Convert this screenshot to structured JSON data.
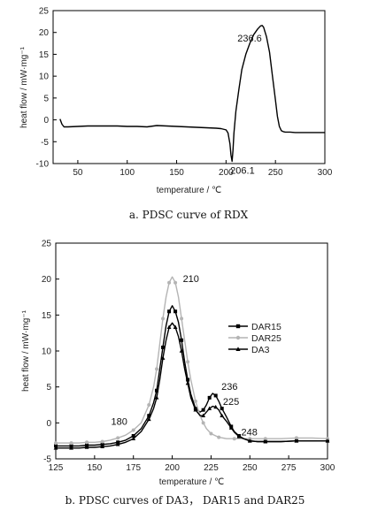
{
  "chart_data": [
    {
      "type": "line",
      "id": "a",
      "xlabel": "temperature / ℃",
      "ylabel": "heat flow / mW·mg⁻¹",
      "xlim": [
        25,
        300
      ],
      "ylim": [
        -10,
        25
      ],
      "xticks": [
        50,
        100,
        150,
        200,
        250,
        300
      ],
      "yticks": [
        -10,
        -5,
        0,
        5,
        10,
        15,
        20,
        25
      ],
      "series": [
        {
          "color": "#000000",
          "x": [
            32,
            34,
            36,
            40,
            50,
            60,
            70,
            80,
            90,
            100,
            110,
            120,
            130,
            140,
            150,
            160,
            170,
            180,
            190,
            195,
            200,
            202,
            204,
            205,
            206.1,
            207,
            208,
            210,
            213,
            216,
            220,
            224,
            228,
            232,
            235,
            236.6,
            238,
            241,
            244,
            247,
            250,
            252,
            254,
            256,
            258,
            260,
            265,
            270,
            280,
            290,
            300
          ],
          "y": [
            0.2,
            -1.0,
            -1.6,
            -1.6,
            -1.5,
            -1.4,
            -1.4,
            -1.4,
            -1.4,
            -1.5,
            -1.5,
            -1.6,
            -1.3,
            -1.4,
            -1.5,
            -1.6,
            -1.7,
            -1.8,
            -1.9,
            -2.0,
            -2.3,
            -3.0,
            -5.5,
            -8.0,
            -9.5,
            -7.0,
            -3.0,
            2.0,
            7.0,
            11.5,
            15.0,
            17.5,
            19.5,
            20.8,
            21.5,
            21.6,
            21.2,
            19.0,
            15.5,
            10.0,
            4.5,
            0.8,
            -1.5,
            -2.5,
            -2.7,
            -2.8,
            -2.8,
            -2.9,
            -2.9,
            -2.9,
            -2.9
          ]
        }
      ],
      "annotations": [
        {
          "text": "236.6",
          "x": 236.6,
          "y": 21.6
        },
        {
          "text": "206.1",
          "x": 206.1,
          "y": -9.5
        }
      ],
      "caption": "a.  PDSC curve of RDX",
      "grid": false,
      "legend": null
    },
    {
      "type": "line",
      "id": "b",
      "xlabel": "temperature / ℃",
      "ylabel": "heat flow / mW·mg⁻¹",
      "xlim": [
        125,
        300
      ],
      "ylim": [
        -5,
        25
      ],
      "xticks": [
        125,
        150,
        175,
        200,
        225,
        250,
        275,
        300
      ],
      "yticks": [
        -5,
        0,
        5,
        10,
        15,
        20,
        25
      ],
      "legend_position": "right",
      "series": [
        {
          "name": "DAR15",
          "color": "#000000",
          "marker": "square",
          "x": [
            125,
            130,
            135,
            140,
            145,
            150,
            155,
            160,
            165,
            170,
            175,
            180,
            185,
            188,
            190,
            192,
            194,
            196,
            198,
            200,
            202,
            204,
            206,
            208,
            210,
            212,
            215,
            218,
            220,
            222,
            224,
            226,
            228,
            230,
            232,
            235,
            238,
            240,
            243,
            246,
            250,
            255,
            260,
            270,
            280,
            290,
            300
          ],
          "y": [
            -3.2,
            -3.2,
            -3.2,
            -3.2,
            -3.1,
            -3.1,
            -3.0,
            -2.9,
            -2.7,
            -2.4,
            -1.8,
            -0.8,
            1.0,
            2.8,
            4.5,
            7.5,
            10.5,
            13.5,
            15.5,
            16.3,
            15.5,
            14.0,
            11.5,
            8.5,
            6.0,
            4.0,
            2.0,
            1.5,
            1.8,
            2.5,
            3.5,
            4.1,
            3.8,
            3.0,
            2.0,
            0.8,
            -0.5,
            -1.2,
            -1.8,
            -2.2,
            -2.5,
            -2.6,
            -2.6,
            -2.6,
            -2.5,
            -2.5,
            -2.5
          ]
        },
        {
          "name": "DAR25",
          "color": "#b4b4b4",
          "marker": "circle",
          "x": [
            125,
            130,
            135,
            140,
            145,
            150,
            155,
            160,
            165,
            170,
            175,
            180,
            185,
            188,
            190,
            192,
            194,
            196,
            198,
            200,
            202,
            204,
            206,
            208,
            210,
            212,
            215,
            218,
            220,
            222,
            225,
            228,
            230,
            235,
            240,
            245,
            250,
            255,
            260,
            270,
            280,
            290,
            300
          ],
          "y": [
            -2.8,
            -2.8,
            -2.8,
            -2.8,
            -2.7,
            -2.7,
            -2.6,
            -2.4,
            -2.1,
            -1.7,
            -1.0,
            0.0,
            2.5,
            5.0,
            7.5,
            11.0,
            14.5,
            17.5,
            19.5,
            20.3,
            19.5,
            17.5,
            14.5,
            11.5,
            8.5,
            6.0,
            3.0,
            1.0,
            0.0,
            -0.8,
            -1.5,
            -1.8,
            -2.0,
            -2.2,
            -2.2,
            -2.2,
            -2.2,
            -2.2,
            -2.2,
            -2.2,
            -2.1,
            -2.1,
            -2.2
          ]
        },
        {
          "name": "DA3",
          "color": "#000000",
          "marker": "triangle",
          "x": [
            125,
            130,
            135,
            140,
            145,
            150,
            155,
            160,
            165,
            170,
            175,
            180,
            185,
            188,
            190,
            192,
            194,
            196,
            198,
            200,
            202,
            204,
            206,
            208,
            210,
            212,
            215,
            218,
            220,
            222,
            224,
            226,
            228,
            230,
            232,
            235,
            238,
            240,
            243,
            246,
            250,
            255,
            260,
            270,
            280,
            290,
            300
          ],
          "y": [
            -3.5,
            -3.5,
            -3.5,
            -3.5,
            -3.4,
            -3.4,
            -3.3,
            -3.2,
            -3.0,
            -2.7,
            -2.2,
            -1.2,
            0.5,
            2.0,
            3.5,
            6.0,
            9.0,
            11.5,
            13.3,
            13.9,
            13.3,
            12.0,
            10.0,
            7.5,
            5.5,
            3.5,
            1.8,
            1.0,
            1.0,
            1.5,
            2.0,
            2.3,
            2.2,
            1.8,
            1.0,
            0.2,
            -0.7,
            -1.3,
            -1.9,
            -2.2,
            -2.5,
            -2.6,
            -2.6,
            -2.6,
            -2.5,
            -2.5,
            -2.5
          ]
        }
      ],
      "annotations": [
        {
          "text": "210",
          "x": 200,
          "y": 20.3
        },
        {
          "text": "180",
          "x": 180,
          "y": -1.0
        },
        {
          "text": "225",
          "x": 219,
          "y": 1.0
        },
        {
          "text": "236",
          "x": 226,
          "y": 4.1
        },
        {
          "text": "248",
          "x": 241,
          "y": -1.5
        }
      ],
      "caption": "b.  PDSC curves of DA3， DAR15  and DAR25",
      "grid": false
    }
  ]
}
